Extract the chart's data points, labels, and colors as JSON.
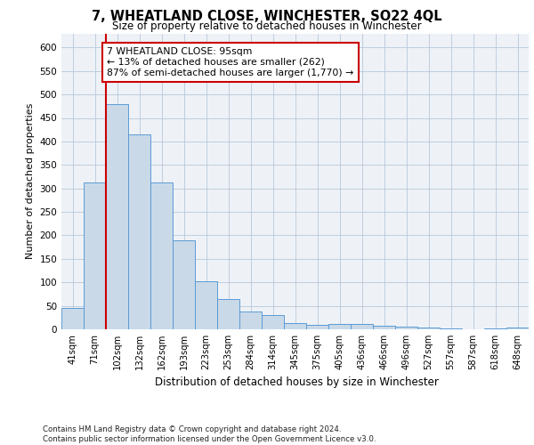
{
  "title": "7, WHEATLAND CLOSE, WINCHESTER, SO22 4QL",
  "subtitle": "Size of property relative to detached houses in Winchester",
  "xlabel": "Distribution of detached houses by size in Winchester",
  "ylabel": "Number of detached properties",
  "categories": [
    "41sqm",
    "71sqm",
    "102sqm",
    "132sqm",
    "162sqm",
    "193sqm",
    "223sqm",
    "253sqm",
    "284sqm",
    "314sqm",
    "345sqm",
    "375sqm",
    "405sqm",
    "436sqm",
    "466sqm",
    "496sqm",
    "527sqm",
    "557sqm",
    "587sqm",
    "618sqm",
    "648sqm"
  ],
  "values": [
    45,
    313,
    480,
    415,
    313,
    190,
    102,
    65,
    38,
    30,
    13,
    10,
    12,
    12,
    8,
    5,
    4,
    1,
    0,
    1,
    3
  ],
  "bar_color": "#c9d9e8",
  "bar_edge_color": "#5b9bd5",
  "grid_color": "#b8c8d8",
  "vline_color": "#cc0000",
  "annotation_text": "7 WHEATLAND CLOSE: 95sqm\n← 13% of detached houses are smaller (262)\n87% of semi-detached houses are larger (1,770) →",
  "annotation_box_color": "#cc0000",
  "ylim": [
    0,
    630
  ],
  "yticks": [
    0,
    50,
    100,
    150,
    200,
    250,
    300,
    350,
    400,
    450,
    500,
    550,
    600
  ],
  "footer": "Contains HM Land Registry data © Crown copyright and database right 2024.\nContains public sector information licensed under the Open Government Licence v3.0.",
  "bg_color": "#eef2f7"
}
